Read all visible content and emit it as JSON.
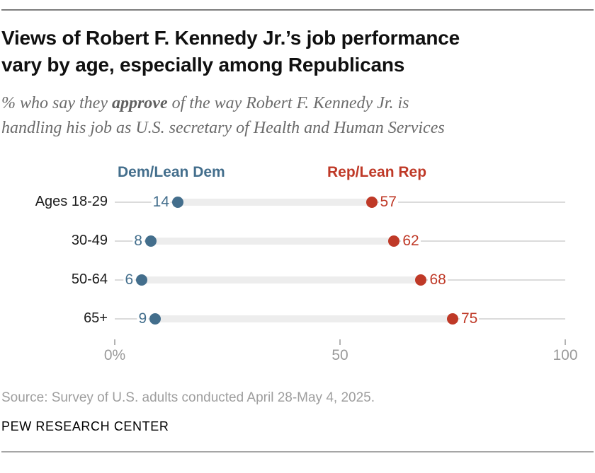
{
  "header": {
    "title_line1": "Views of Robert F. Kennedy Jr.’s job performance",
    "title_line2": "vary by age, especially among Republicans",
    "subtitle_pre": "% who say they ",
    "subtitle_bold": "approve",
    "subtitle_post_line1": " of the way Robert F. Kennedy Jr. is",
    "subtitle_line2": "handling his job as U.S. secretary of Health and Human Services"
  },
  "chart_data": {
    "type": "scatter",
    "variant": "dumbbell-dot-plot",
    "categories": [
      "Ages 18-29",
      "30-49",
      "50-64",
      "65+"
    ],
    "series": [
      {
        "name": "Dem/Lean Dem",
        "color": "#436e8c",
        "values": [
          14,
          8,
          6,
          9
        ]
      },
      {
        "name": "Rep/Lean Rep",
        "color": "#bf3927",
        "values": [
          57,
          62,
          68,
          75
        ]
      }
    ],
    "xlim": [
      0,
      100
    ],
    "x_tick_values": [
      0,
      50,
      100
    ],
    "x_tick_labels": [
      "0%",
      "50",
      "100"
    ],
    "grid": false,
    "legend_position": "top",
    "band_color": "#ededed",
    "baseline_color": "#dbdbdb"
  },
  "footer": {
    "source": "Source: Survey of U.S. adults conducted April 28-May 4, 2025.",
    "brand": "PEW RESEARCH CENTER"
  }
}
